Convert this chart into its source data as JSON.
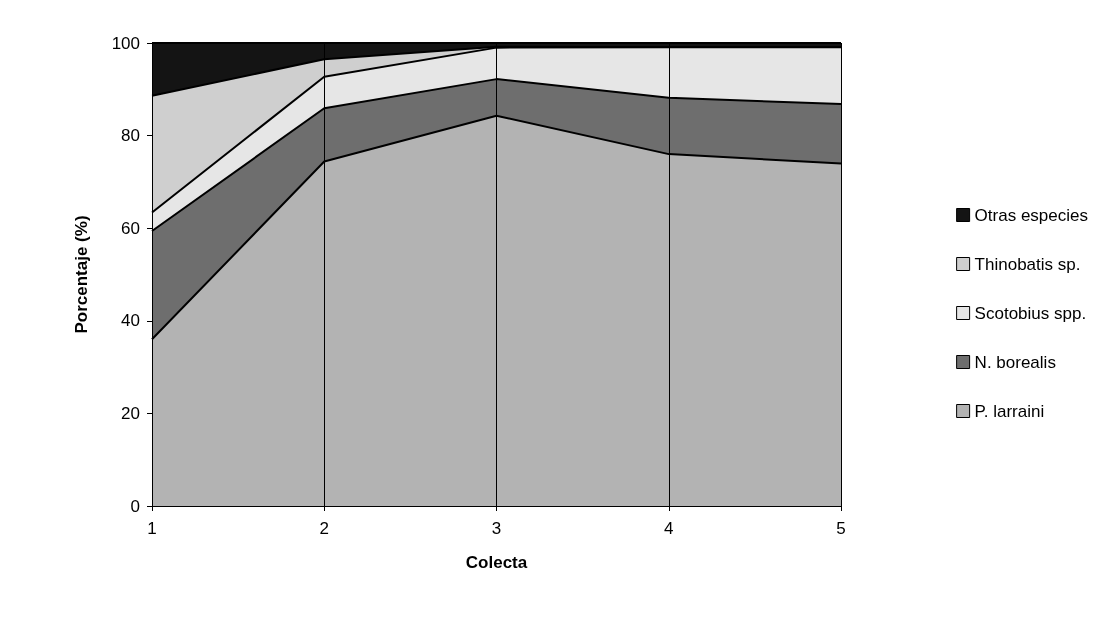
{
  "chart_data": {
    "type": "area",
    "stacked": true,
    "xlabel": "Colecta",
    "ylabel": "Porcentaje (%)",
    "categories": [
      "1",
      "2",
      "3",
      "4",
      "5"
    ],
    "ylim": [
      0,
      100
    ],
    "yticks": [
      0,
      20,
      40,
      60,
      80,
      100
    ],
    "grid": "x",
    "legend": "right",
    "marker": "none",
    "series": [
      {
        "name": "P. larraini",
        "color": "#b3b3b3",
        "values": [
          36,
          74.4,
          84.3,
          76,
          74
        ]
      },
      {
        "name": "N. borealis",
        "color": "#6e6e6e",
        "values": [
          23.4,
          11.5,
          7.9,
          12.2,
          12.8
        ]
      },
      {
        "name": "Scotobius spp.",
        "color": "#e6e6e6",
        "values": [
          4,
          6.8,
          6.8,
          10.9,
          12.3
        ]
      },
      {
        "name": "Thinobatis sp.",
        "color": "#cfcfcf",
        "values": [
          25.2,
          3.8,
          0.2,
          0,
          0
        ]
      },
      {
        "name": "Otras especies",
        "color": "#141414",
        "values": [
          11.4,
          3.5,
          0.8,
          0.9,
          0.9
        ]
      }
    ]
  }
}
